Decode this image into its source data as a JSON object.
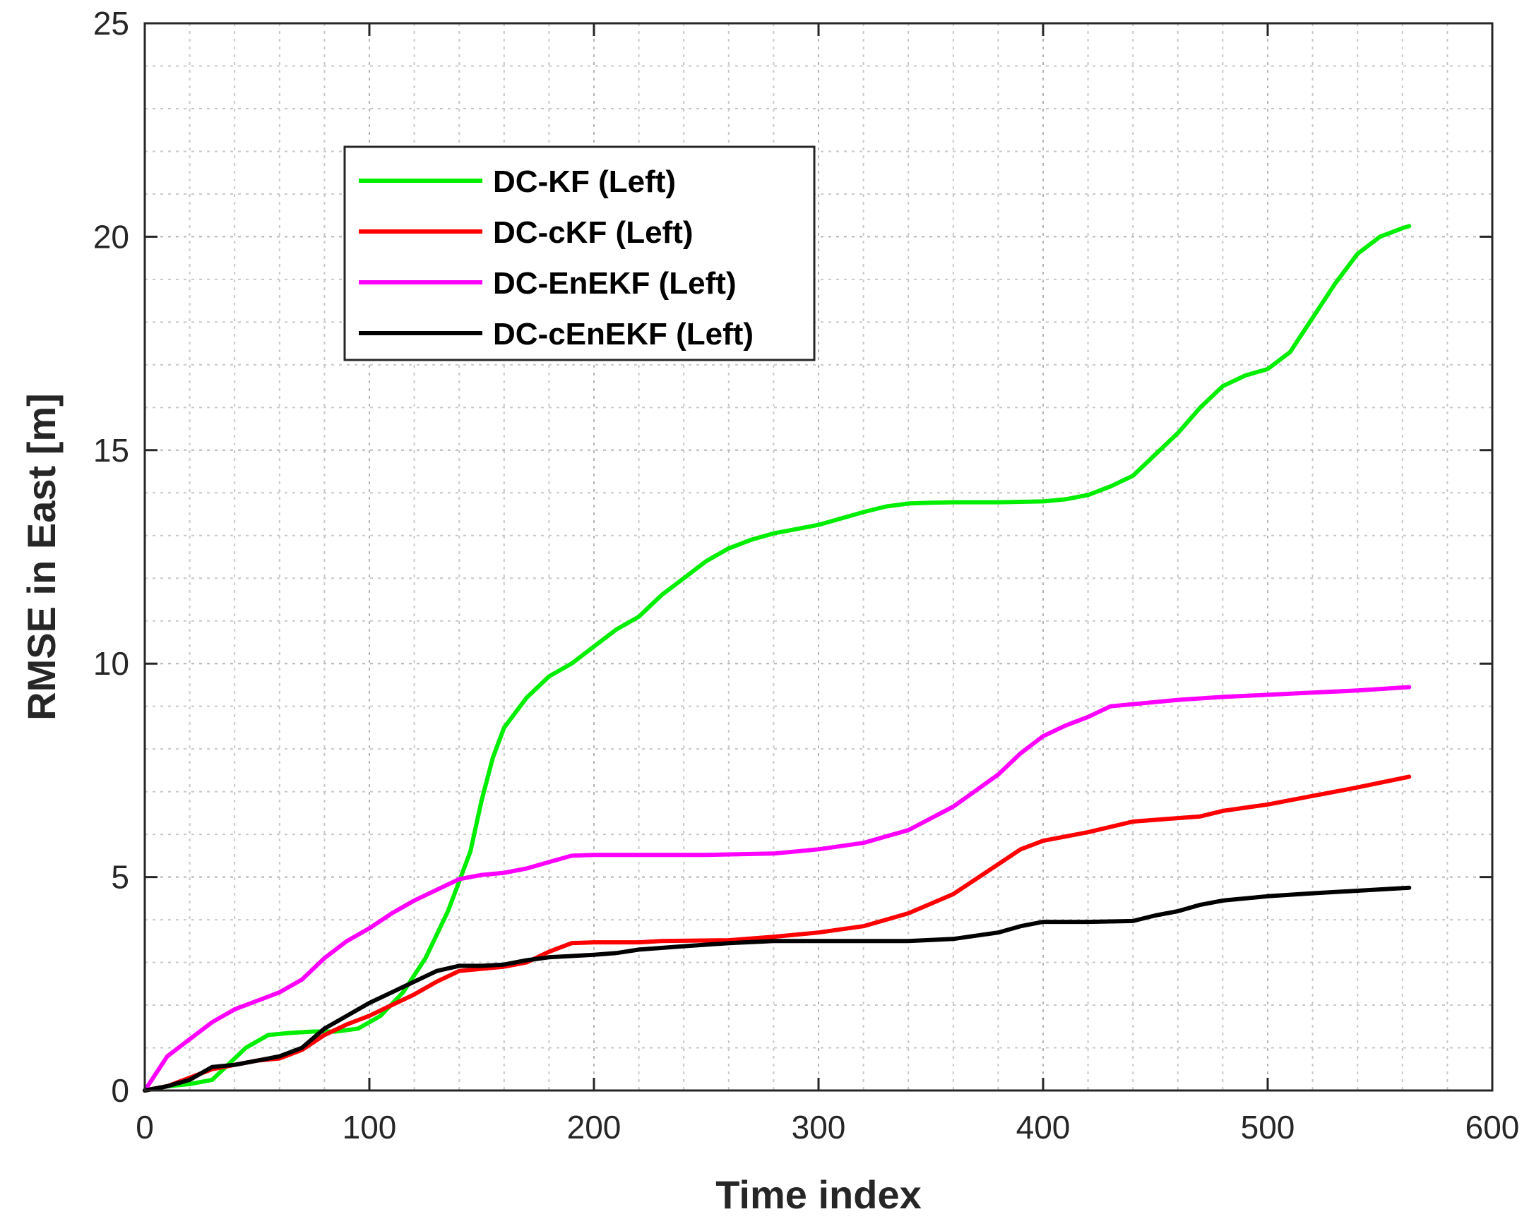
{
  "chart_data": {
    "type": "line",
    "title": "",
    "xlabel": "Time index",
    "ylabel": "RMSE in East [m]",
    "xlim": [
      0,
      600
    ],
    "ylim": [
      0,
      25
    ],
    "xticks": [
      0,
      100,
      200,
      300,
      400,
      500,
      600
    ],
    "yticks": [
      0,
      5,
      10,
      15,
      20,
      25
    ],
    "x_tick_labels": [
      "0",
      "100",
      "200",
      "300",
      "400",
      "500",
      "600"
    ],
    "y_tick_labels": [
      "0",
      "5",
      "10",
      "15",
      "20",
      "25"
    ],
    "grid": true,
    "minor_grid": true,
    "legend_position": "upper-left",
    "series": [
      {
        "name": "DC-KF (Left)",
        "color": "#00ee00",
        "points": [
          [
            0,
            0
          ],
          [
            10,
            0.1
          ],
          [
            20,
            0.15
          ],
          [
            30,
            0.25
          ],
          [
            35,
            0.5
          ],
          [
            45,
            1.0
          ],
          [
            55,
            1.3
          ],
          [
            65,
            1.35
          ],
          [
            75,
            1.38
          ],
          [
            85,
            1.38
          ],
          [
            95,
            1.45
          ],
          [
            105,
            1.75
          ],
          [
            115,
            2.3
          ],
          [
            125,
            3.1
          ],
          [
            135,
            4.2
          ],
          [
            145,
            5.6
          ],
          [
            150,
            6.8
          ],
          [
            155,
            7.8
          ],
          [
            160,
            8.5
          ],
          [
            170,
            9.2
          ],
          [
            180,
            9.7
          ],
          [
            190,
            10.0
          ],
          [
            200,
            10.4
          ],
          [
            210,
            10.8
          ],
          [
            220,
            11.1
          ],
          [
            230,
            11.6
          ],
          [
            240,
            12.0
          ],
          [
            250,
            12.4
          ],
          [
            260,
            12.7
          ],
          [
            270,
            12.9
          ],
          [
            280,
            13.05
          ],
          [
            290,
            13.15
          ],
          [
            300,
            13.25
          ],
          [
            310,
            13.4
          ],
          [
            320,
            13.55
          ],
          [
            330,
            13.68
          ],
          [
            340,
            13.75
          ],
          [
            350,
            13.77
          ],
          [
            360,
            13.78
          ],
          [
            380,
            13.78
          ],
          [
            400,
            13.8
          ],
          [
            410,
            13.85
          ],
          [
            420,
            13.95
          ],
          [
            430,
            14.15
          ],
          [
            440,
            14.4
          ],
          [
            450,
            14.9
          ],
          [
            460,
            15.4
          ],
          [
            470,
            16.0
          ],
          [
            480,
            16.5
          ],
          [
            490,
            16.75
          ],
          [
            500,
            16.9
          ],
          [
            510,
            17.3
          ],
          [
            520,
            18.1
          ],
          [
            530,
            18.9
          ],
          [
            540,
            19.6
          ],
          [
            550,
            20.0
          ],
          [
            560,
            20.2
          ],
          [
            563,
            20.25
          ]
        ]
      },
      {
        "name": "DC-cKF (Left)",
        "color": "#ff0000",
        "points": [
          [
            0,
            0
          ],
          [
            10,
            0.1
          ],
          [
            20,
            0.3
          ],
          [
            30,
            0.5
          ],
          [
            40,
            0.6
          ],
          [
            50,
            0.7
          ],
          [
            60,
            0.75
          ],
          [
            70,
            0.95
          ],
          [
            80,
            1.3
          ],
          [
            90,
            1.55
          ],
          [
            100,
            1.75
          ],
          [
            110,
            2.0
          ],
          [
            120,
            2.25
          ],
          [
            130,
            2.55
          ],
          [
            140,
            2.8
          ],
          [
            150,
            2.85
          ],
          [
            160,
            2.9
          ],
          [
            170,
            3.0
          ],
          [
            180,
            3.25
          ],
          [
            190,
            3.45
          ],
          [
            200,
            3.47
          ],
          [
            220,
            3.47
          ],
          [
            230,
            3.5
          ],
          [
            260,
            3.52
          ],
          [
            280,
            3.6
          ],
          [
            300,
            3.7
          ],
          [
            320,
            3.85
          ],
          [
            340,
            4.15
          ],
          [
            360,
            4.6
          ],
          [
            370,
            4.95
          ],
          [
            380,
            5.3
          ],
          [
            390,
            5.65
          ],
          [
            400,
            5.85
          ],
          [
            420,
            6.05
          ],
          [
            440,
            6.3
          ],
          [
            460,
            6.38
          ],
          [
            470,
            6.42
          ],
          [
            480,
            6.55
          ],
          [
            500,
            6.7
          ],
          [
            520,
            6.9
          ],
          [
            540,
            7.1
          ],
          [
            563,
            7.35
          ]
        ]
      },
      {
        "name": "DC-EnEKF (Left)",
        "color": "#ff00ff",
        "points": [
          [
            0,
            0
          ],
          [
            5,
            0.4
          ],
          [
            10,
            0.8
          ],
          [
            20,
            1.2
          ],
          [
            30,
            1.6
          ],
          [
            40,
            1.9
          ],
          [
            50,
            2.1
          ],
          [
            60,
            2.3
          ],
          [
            70,
            2.6
          ],
          [
            80,
            3.1
          ],
          [
            90,
            3.5
          ],
          [
            100,
            3.8
          ],
          [
            110,
            4.15
          ],
          [
            120,
            4.45
          ],
          [
            130,
            4.7
          ],
          [
            140,
            4.95
          ],
          [
            150,
            5.05
          ],
          [
            160,
            5.1
          ],
          [
            170,
            5.2
          ],
          [
            180,
            5.35
          ],
          [
            190,
            5.5
          ],
          [
            200,
            5.52
          ],
          [
            220,
            5.52
          ],
          [
            250,
            5.52
          ],
          [
            280,
            5.55
          ],
          [
            300,
            5.65
          ],
          [
            320,
            5.8
          ],
          [
            340,
            6.1
          ],
          [
            360,
            6.65
          ],
          [
            380,
            7.4
          ],
          [
            390,
            7.9
          ],
          [
            400,
            8.3
          ],
          [
            410,
            8.55
          ],
          [
            420,
            8.75
          ],
          [
            430,
            9.0
          ],
          [
            440,
            9.05
          ],
          [
            460,
            9.15
          ],
          [
            480,
            9.22
          ],
          [
            500,
            9.27
          ],
          [
            520,
            9.32
          ],
          [
            540,
            9.37
          ],
          [
            563,
            9.45
          ]
        ]
      },
      {
        "name": "DC-cEnEKF (Left)",
        "color": "#000000",
        "points": [
          [
            0,
            0
          ],
          [
            10,
            0.1
          ],
          [
            20,
            0.25
          ],
          [
            30,
            0.55
          ],
          [
            40,
            0.6
          ],
          [
            50,
            0.7
          ],
          [
            60,
            0.8
          ],
          [
            70,
            1.0
          ],
          [
            80,
            1.45
          ],
          [
            90,
            1.75
          ],
          [
            100,
            2.05
          ],
          [
            110,
            2.3
          ],
          [
            120,
            2.55
          ],
          [
            130,
            2.8
          ],
          [
            140,
            2.92
          ],
          [
            150,
            2.92
          ],
          [
            160,
            2.95
          ],
          [
            170,
            3.05
          ],
          [
            180,
            3.12
          ],
          [
            190,
            3.15
          ],
          [
            200,
            3.18
          ],
          [
            210,
            3.22
          ],
          [
            220,
            3.3
          ],
          [
            240,
            3.38
          ],
          [
            260,
            3.45
          ],
          [
            280,
            3.5
          ],
          [
            300,
            3.5
          ],
          [
            320,
            3.5
          ],
          [
            340,
            3.5
          ],
          [
            360,
            3.55
          ],
          [
            380,
            3.7
          ],
          [
            390,
            3.85
          ],
          [
            400,
            3.95
          ],
          [
            420,
            3.95
          ],
          [
            440,
            3.97
          ],
          [
            450,
            4.1
          ],
          [
            460,
            4.2
          ],
          [
            470,
            4.35
          ],
          [
            480,
            4.45
          ],
          [
            500,
            4.55
          ],
          [
            520,
            4.62
          ],
          [
            540,
            4.68
          ],
          [
            563,
            4.75
          ]
        ]
      }
    ]
  }
}
